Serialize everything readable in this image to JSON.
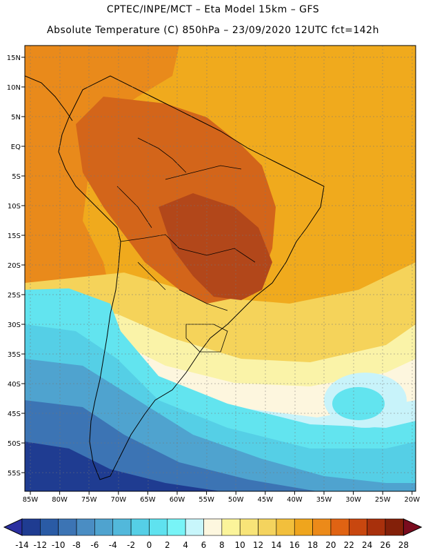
{
  "title_line1": "CPTEC/INPE/MCT –  Eta Model 15km – GFS",
  "title_line2": "Absolute Temperature (C) 850hPa – 23/09/2020 12UTC fct=142h",
  "lat_ticks": [
    "15N",
    "10N",
    "5N",
    "EQ",
    "5S",
    "10S",
    "15S",
    "20S",
    "25S",
    "30S",
    "35S",
    "40S",
    "45S",
    "50S",
    "55S"
  ],
  "lon_ticks": [
    "85W",
    "80W",
    "75W",
    "70W",
    "65W",
    "60W",
    "55W",
    "50W",
    "45W",
    "40W",
    "35W",
    "30W",
    "25W",
    "20W"
  ],
  "colorbar": {
    "labels": [
      "-14",
      "-12",
      "-10",
      "-8",
      "-6",
      "-4",
      "-2",
      "0",
      "2",
      "4",
      "6",
      "8",
      "10",
      "12",
      "14",
      "16",
      "18",
      "20",
      "22",
      "24",
      "26",
      "28"
    ],
    "colors": [
      "#1f3c91",
      "#2a5ba5",
      "#3c74b4",
      "#4a8dc3",
      "#4fa3cf",
      "#52b8db",
      "#55cfe6",
      "#5fe2ef",
      "#78f4f7",
      "#c8f6fb",
      "#fdf7df",
      "#fbf49a",
      "#f8e478",
      "#f4d35e",
      "#f2bf3c",
      "#efa51d",
      "#ec8a19",
      "#e06313",
      "#c8470f",
      "#a8300c",
      "#832009"
    ],
    "arrow_left": "#2b2fa0",
    "arrow_right": "#7a0c1e"
  },
  "map_colors": {
    "ocean_warm": "#f0aa1d",
    "tropics_orange": "#e98a1b",
    "hot_core": "#d3651a",
    "hottest": "#b2471a",
    "warm_yellow": "#f5d35a",
    "pale": "#faf3a8",
    "cream": "#fdf6de",
    "light_cyan": "#c8f3fa",
    "cyan": "#62e4ef",
    "mid_cyan": "#55cfe6",
    "steel": "#4fa3cf",
    "blue": "#3c74b4",
    "dark_blue": "#1f3c91"
  }
}
